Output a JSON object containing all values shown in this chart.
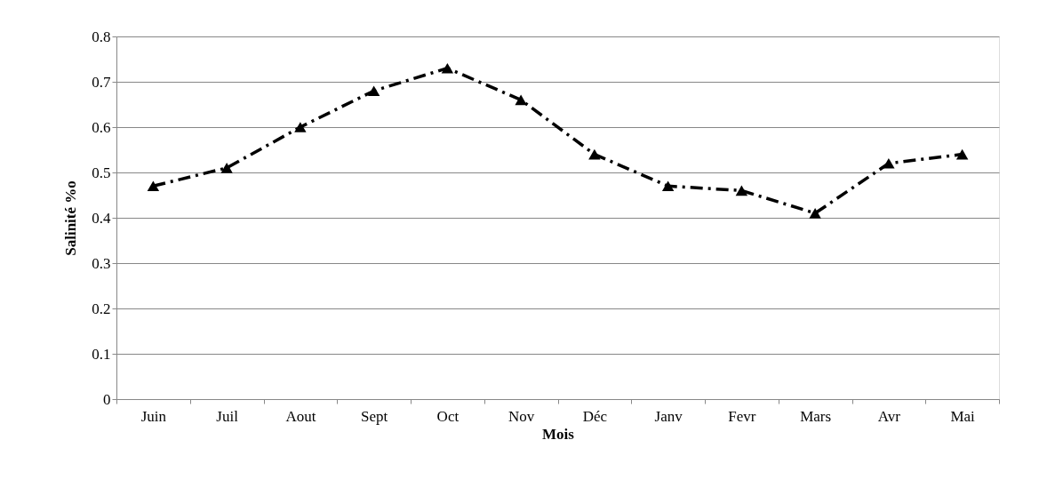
{
  "chart_data": {
    "type": "line",
    "xlabel": "Mois",
    "ylabel": "Salinité %o",
    "categories": [
      "Juin",
      "Juil",
      "Aout",
      "Sept",
      "Oct",
      "Nov",
      "Déc",
      "Janv",
      "Fevr",
      "Mars",
      "Avr",
      "Mai"
    ],
    "series": [
      {
        "color": "#000000",
        "values": [
          0.47,
          0.51,
          0.6,
          0.68,
          0.73,
          0.66,
          0.54,
          0.47,
          0.46,
          0.41,
          0.52,
          0.54
        ]
      }
    ],
    "ylim": [
      0,
      0.8
    ],
    "yticks": [
      0,
      0.1,
      0.2,
      0.3,
      0.4,
      0.5,
      0.6,
      0.7,
      0.8
    ],
    "grid": "y",
    "marker": "triangle",
    "line_style": "dashed"
  }
}
